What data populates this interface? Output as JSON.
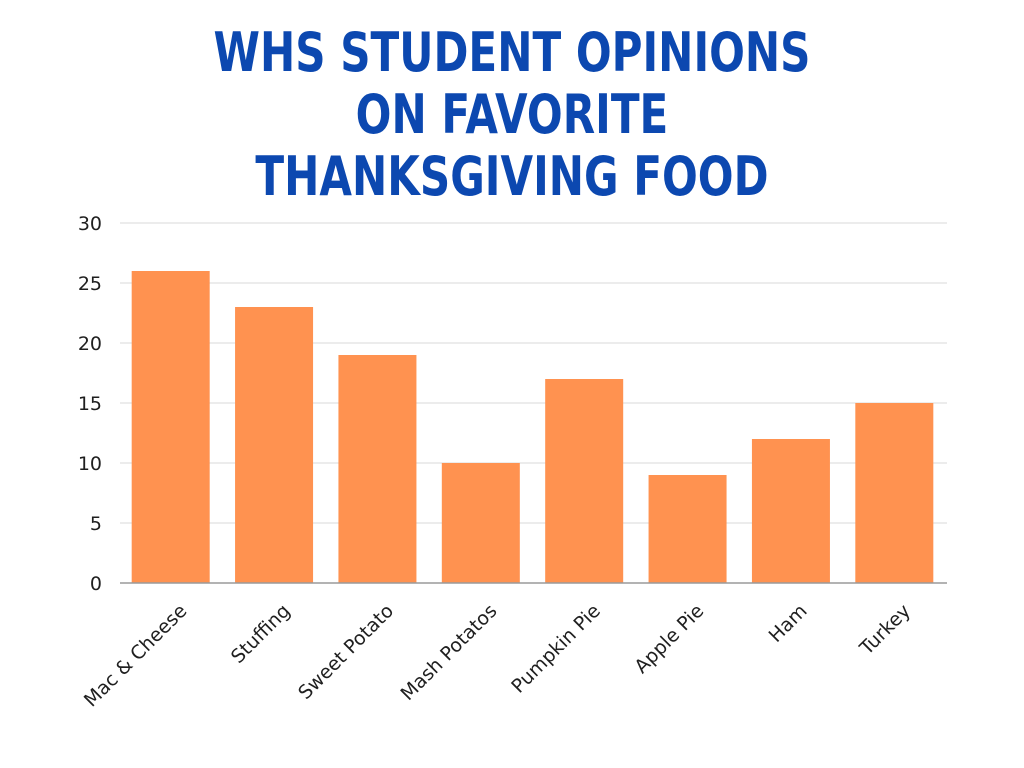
{
  "chart_data": {
    "type": "bar",
    "title_lines": [
      "WHS STUDENT OPINIONS",
      "ON FAVORITE",
      "THANKSGIVING FOOD"
    ],
    "categories": [
      "Mac & Cheese",
      "Stuffing",
      "Sweet Potato",
      "Mash Potatos",
      "Pumpkin Pie",
      "Apple Pie",
      "Ham",
      "Turkey"
    ],
    "values": [
      26,
      23,
      19,
      10,
      17,
      9,
      12,
      15
    ],
    "ylim": [
      0,
      30
    ],
    "yticks": [
      "0",
      "5",
      "10",
      "15",
      "20",
      "25",
      "30"
    ],
    "grid": true,
    "legend": "none",
    "colors": {
      "bar": "#ff9250",
      "title": "#0c48b0",
      "grid": "#d9d9d9",
      "axis": "#9a9a9a"
    }
  }
}
